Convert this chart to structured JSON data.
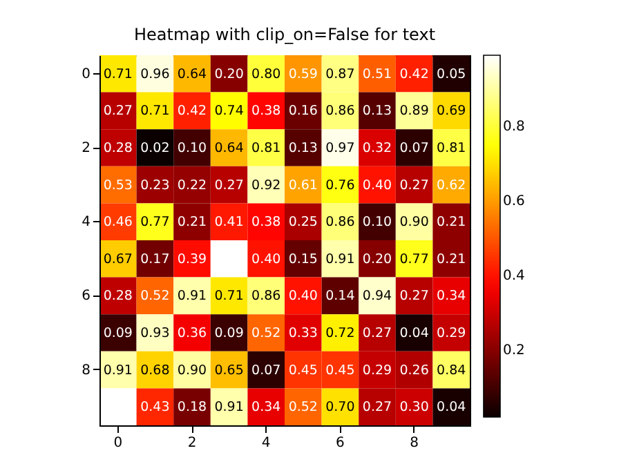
{
  "chart_data": {
    "type": "heatmap",
    "title": "Heatmap with clip_on=False for text",
    "categories": [
      "0",
      null,
      "2",
      null,
      "4",
      null,
      "6",
      null,
      "8",
      null
    ],
    "y_categories": [
      "0",
      null,
      "2",
      null,
      "4",
      null,
      "6",
      null,
      "8",
      null
    ],
    "cells": [
      [
        0.71,
        0.96,
        0.64,
        0.2,
        0.8,
        0.59,
        0.87,
        0.51,
        0.42,
        0.05
      ],
      [
        0.27,
        0.71,
        0.42,
        0.74,
        0.38,
        0.16,
        0.86,
        0.13,
        0.89,
        0.69
      ],
      [
        0.28,
        0.02,
        0.1,
        0.64,
        0.81,
        0.13,
        0.97,
        0.32,
        0.07,
        0.81
      ],
      [
        0.53,
        0.23,
        0.22,
        0.27,
        0.92,
        0.61,
        0.76,
        0.4,
        0.27,
        0.62
      ],
      [
        0.46,
        0.77,
        0.21,
        0.41,
        0.38,
        0.25,
        0.86,
        0.1,
        0.9,
        0.21
      ],
      [
        0.67,
        0.17,
        0.39,
        0.99,
        0.4,
        0.15,
        0.91,
        0.2,
        0.77,
        0.21
      ],
      [
        0.28,
        0.52,
        0.91,
        0.71,
        0.86,
        0.4,
        0.14,
        0.94,
        0.27,
        0.34
      ],
      [
        0.09,
        0.93,
        0.36,
        0.09,
        0.52,
        0.33,
        0.72,
        0.27,
        0.04,
        0.29
      ],
      [
        0.91,
        0.68,
        0.9,
        0.65,
        0.07,
        0.45,
        0.45,
        0.29,
        0.26,
        0.84
      ],
      [
        0.99,
        0.43,
        0.18,
        0.91,
        0.34,
        0.52,
        0.7,
        0.27,
        0.3,
        0.04
      ]
    ],
    "cell_labels": [
      [
        "0.71",
        "0.96",
        "0.64",
        "0.20",
        "0.80",
        "0.59",
        "0.87",
        "0.51",
        "0.42",
        "0.05"
      ],
      [
        "0.27",
        "0.71",
        "0.42",
        "0.74",
        "0.38",
        "0.16",
        "0.86",
        "0.13",
        "0.89",
        "0.69"
      ],
      [
        "0.28",
        "0.02",
        "0.10",
        "0.64",
        "0.81",
        "0.13",
        "0.97",
        "0.32",
        "0.07",
        "0.81"
      ],
      [
        "0.53",
        "0.23",
        "0.22",
        "0.27",
        "0.92",
        "0.61",
        "0.76",
        "0.40",
        "0.27",
        "0.62"
      ],
      [
        "0.46",
        "0.77",
        "0.21",
        "0.41",
        "0.38",
        "0.25",
        "0.86",
        "0.10",
        "0.90",
        "0.21"
      ],
      [
        "0.67",
        "0.17",
        "0.39",
        null,
        "0.40",
        "0.15",
        "0.91",
        "0.20",
        "0.77",
        "0.21"
      ],
      [
        "0.28",
        "0.52",
        "0.91",
        "0.71",
        "0.86",
        "0.40",
        "0.14",
        "0.94",
        "0.27",
        "0.34"
      ],
      [
        "0.09",
        "0.93",
        "0.36",
        "0.09",
        "0.52",
        "0.33",
        "0.72",
        "0.27",
        "0.04",
        "0.29"
      ],
      [
        "0.91",
        "0.68",
        "0.90",
        "0.65",
        "0.07",
        "0.45",
        "0.45",
        "0.29",
        "0.26",
        "0.84"
      ],
      [
        null,
        "0.43",
        "0.18",
        "0.91",
        "0.34",
        "0.52",
        "0.70",
        "0.27",
        "0.30",
        "0.04"
      ]
    ],
    "clim": [
      0.02,
      0.99
    ],
    "cticks": [
      0.2,
      0.4,
      0.6,
      0.8
    ]
  }
}
